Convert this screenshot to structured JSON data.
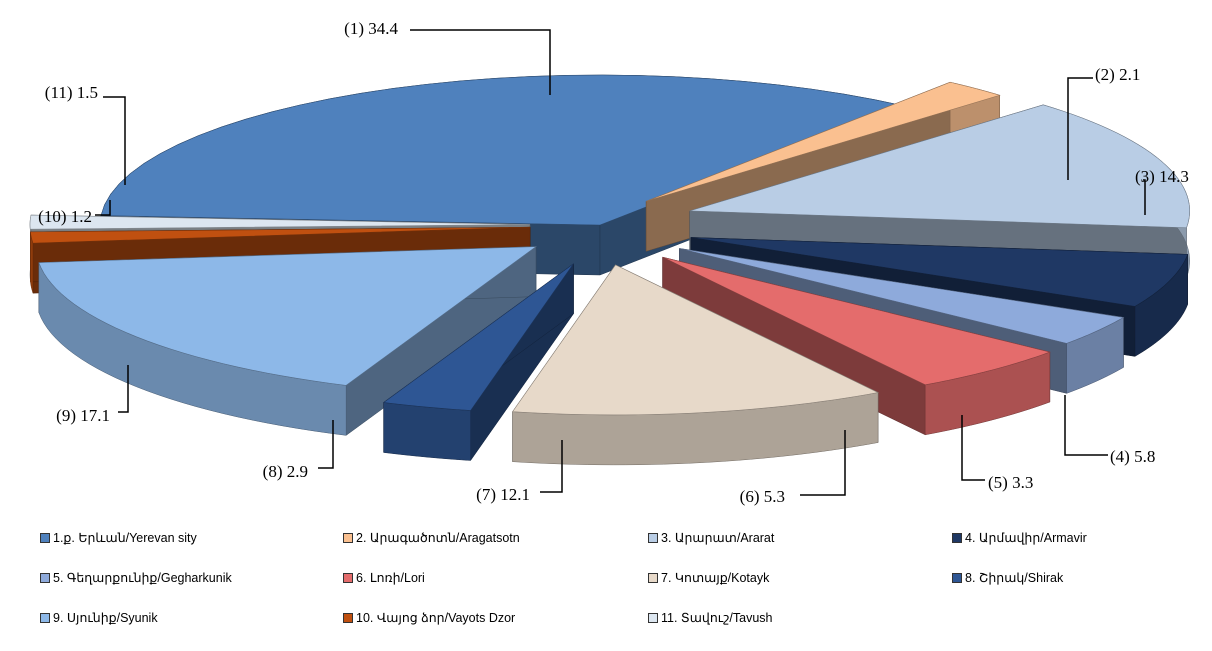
{
  "chart_data": {
    "type": "pie",
    "title": "",
    "categories": [
      "1.ք. Երևան/Yerevan sity",
      "2. Արագածոտն/Aragatsotn",
      "3. Արարատ/Ararat",
      "4. Արմավիր/Armavir",
      "5. Գեղարքունիք/Gegharkunik",
      "6. Լոռի/Lori",
      "7. Կոտայք/Kotayk",
      "8. Շիրակ/Shirak",
      "9. Սյունիք/Syunik",
      "10. Վայոց ձոր/Vayots Dzor",
      "11. Տավուշ/Tavush"
    ],
    "values": [
      34.4,
      2.1,
      14.3,
      5.8,
      3.3,
      5.3,
      12.1,
      2.9,
      17.1,
      1.2,
      1.5
    ],
    "data_labels": [
      "(1) 34.4",
      "(2) 2.1",
      "(3) 14.3",
      "(4) 5.8",
      "(5) 3.3",
      "(6) 5.3",
      "(7) 12.1",
      "(8) 2.9",
      "(9) 17.1",
      "(10) 1.2",
      "(11) 1.5"
    ],
    "colors": [
      "#4f81bd",
      "#fac090",
      "#b9cde5",
      "#1f3864",
      "#8eaadb",
      "#e46c6c",
      "#e7d9c9",
      "#2e5694",
      "#8db8e8",
      "#c05010",
      "#dce6f0"
    ],
    "style": "exploded-3d-pie",
    "legend": "bottom"
  }
}
